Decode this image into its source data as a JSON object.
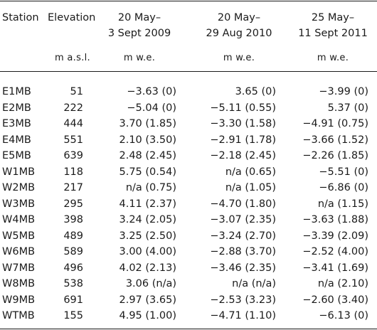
{
  "table": {
    "headers": {
      "station": "Station",
      "elevation": "Elevation",
      "period1_line1": "20 May–",
      "period1_line2": "3 Sept 2009",
      "period2_line1": "20 May–",
      "period2_line2": "29 Aug 2010",
      "period3_line1": "25 May–",
      "period3_line2": "11 Sept 2011"
    },
    "units": {
      "elevation": "m a.s.l.",
      "period1": "m w.e.",
      "period2": "m w.e.",
      "period3": "m w.e."
    },
    "rows": [
      {
        "station": "E1MB",
        "elevation": "51",
        "v2009": "−3.63 (0)",
        "v2010": "3.65 (0)",
        "v2011": "−3.99 (0)"
      },
      {
        "station": "E2MB",
        "elevation": "222",
        "v2009": "−5.04 (0)",
        "v2010": "−5.11 (0.55)",
        "v2011": "5.37 (0)"
      },
      {
        "station": "E3MB",
        "elevation": "444",
        "v2009": "3.70 (1.85)",
        "v2010": "−3.30 (1.58)",
        "v2011": "−4.91 (0.75)"
      },
      {
        "station": "E4MB",
        "elevation": "551",
        "v2009": "2.10 (3.50)",
        "v2010": "−2.91 (1.78)",
        "v2011": "−3.66 (1.52)"
      },
      {
        "station": "E5MB",
        "elevation": "639",
        "v2009": "2.48 (2.45)",
        "v2010": "−2.18 (2.45)",
        "v2011": "−2.26 (1.85)"
      },
      {
        "station": "W1MB",
        "elevation": "118",
        "v2009": "5.75 (0.54)",
        "v2010": "n/a (0.65)",
        "v2011": "−5.51 (0)"
      },
      {
        "station": "W2MB",
        "elevation": "217",
        "v2009": "n/a (0.75)",
        "v2010": "n/a (1.05)",
        "v2011": "−6.86 (0)"
      },
      {
        "station": "W3MB",
        "elevation": "295",
        "v2009": "4.11 (2.37)",
        "v2010": "−4.70 (1.80)",
        "v2011": "n/a (1.15)"
      },
      {
        "station": "W4MB",
        "elevation": "398",
        "v2009": "3.24 (2.05)",
        "v2010": "−3.07 (2.35)",
        "v2011": "−3.63 (1.88)"
      },
      {
        "station": "W5MB",
        "elevation": "489",
        "v2009": "3.25 (2.50)",
        "v2010": "−3.24 (2.70)",
        "v2011": "−3.39 (2.09)"
      },
      {
        "station": "W6MB",
        "elevation": "589",
        "v2009": "3.00 (4.00)",
        "v2010": "−2.88 (3.70)",
        "v2011": "−2.52 (4.00)"
      },
      {
        "station": "W7MB",
        "elevation": "496",
        "v2009": "4.02 (2.13)",
        "v2010": "−3.46 (2.35)",
        "v2011": "−3.41 (1.69)"
      },
      {
        "station": "W8MB",
        "elevation": "538",
        "v2009": "3.06 (n/a)",
        "v2010": "n/a (n/a)",
        "v2011": "n/a (2.10)"
      },
      {
        "station": "W9MB",
        "elevation": "691",
        "v2009": "2.97 (3.65)",
        "v2010": "−2.53 (3.23)",
        "v2011": "−2.60 (3.40)"
      },
      {
        "station": "WTMB",
        "elevation": "155",
        "v2009": "4.95 (1.00)",
        "v2010": "−4.71 (1.10)",
        "v2011": "−6.13 (0)"
      }
    ]
  }
}
